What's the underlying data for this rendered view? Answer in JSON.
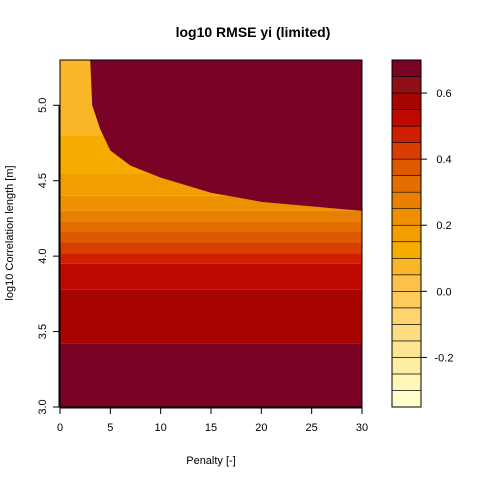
{
  "chart_data": {
    "type": "heatmap",
    "title": "log10 RMSE yi (limited)",
    "xlabel": "Penalty [-]",
    "ylabel": "log10 Correlation length [m]",
    "xlim": [
      0,
      30
    ],
    "ylim": [
      3.0,
      5.3
    ],
    "x_ticks": [
      "0",
      "5",
      "10",
      "15",
      "20",
      "25",
      "30"
    ],
    "y_ticks": [
      "3.0",
      "3.5",
      "4.0",
      "4.5",
      "5.0"
    ],
    "colorbar": {
      "range": [
        -0.35,
        0.7
      ],
      "ticks": [
        "-0.2",
        "0.0",
        "0.2",
        "0.4",
        "0.6"
      ],
      "levels": [
        {
          "from": -0.35,
          "to": -0.3,
          "color": "#FFFFCC"
        },
        {
          "from": -0.3,
          "to": -0.25,
          "color": "#FFF6B8"
        },
        {
          "from": -0.25,
          "to": -0.2,
          "color": "#FEEEA5"
        },
        {
          "from": -0.2,
          "to": -0.15,
          "color": "#FEE592"
        },
        {
          "from": -0.15,
          "to": -0.1,
          "color": "#FEDC80"
        },
        {
          "from": -0.1,
          "to": -0.05,
          "color": "#FDD46E"
        },
        {
          "from": -0.05,
          "to": 0.0,
          "color": "#FCCB5C"
        },
        {
          "from": 0.0,
          "to": 0.05,
          "color": "#FBC148"
        },
        {
          "from": 0.05,
          "to": 0.1,
          "color": "#F9B728"
        },
        {
          "from": 0.1,
          "to": 0.15,
          "color": "#F5AB00"
        },
        {
          "from": 0.15,
          "to": 0.2,
          "color": "#F29D00"
        },
        {
          "from": 0.2,
          "to": 0.25,
          "color": "#EE8F00"
        },
        {
          "from": 0.25,
          "to": 0.3,
          "color": "#E97F00"
        },
        {
          "from": 0.3,
          "to": 0.35,
          "color": "#E46D00"
        },
        {
          "from": 0.35,
          "to": 0.4,
          "color": "#DE5800"
        },
        {
          "from": 0.4,
          "to": 0.45,
          "color": "#D73E00"
        },
        {
          "from": 0.45,
          "to": 0.5,
          "color": "#CF1F00"
        },
        {
          "from": 0.5,
          "to": 0.55,
          "color": "#BF0900"
        },
        {
          "from": 0.55,
          "to": 0.6,
          "color": "#A80500"
        },
        {
          "from": 0.6,
          "to": 0.65,
          "color": "#900F14"
        },
        {
          "from": 0.65,
          "to": 0.7,
          "color": "#7A0225"
        }
      ]
    },
    "saturated_region": {
      "description_level": 0.7,
      "boundary": [
        [
          3.0,
          5.3
        ],
        [
          3.2,
          5.0
        ],
        [
          4.0,
          4.84
        ],
        [
          5.0,
          4.7
        ],
        [
          7.0,
          4.6
        ],
        [
          10.0,
          4.52
        ],
        [
          15.0,
          4.42
        ],
        [
          20.0,
          4.36
        ],
        [
          25.0,
          4.33
        ],
        [
          30.0,
          4.3
        ]
      ]
    },
    "bands": [
      {
        "y_from": 3.0,
        "y_to": 3.42,
        "value": 0.68
      },
      {
        "y_from": 3.42,
        "y_to": 3.78,
        "value": 0.58
      },
      {
        "y_from": 3.78,
        "y_to": 3.95,
        "value": 0.52
      },
      {
        "y_from": 3.95,
        "y_to": 4.02,
        "value": 0.47
      },
      {
        "y_from": 4.02,
        "y_to": 4.09,
        "value": 0.42
      },
      {
        "y_from": 4.09,
        "y_to": 4.16,
        "value": 0.37
      },
      {
        "y_from": 4.16,
        "y_to": 4.23,
        "value": 0.32
      },
      {
        "y_from": 4.23,
        "y_to": 4.3,
        "value": 0.27
      },
      {
        "y_from": 4.3,
        "y_to": 4.4,
        "value": 0.22
      },
      {
        "y_from": 4.4,
        "y_to": 4.55,
        "value": 0.17
      },
      {
        "y_from": 4.55,
        "y_to": 4.8,
        "value": 0.12
      },
      {
        "y_from": 4.8,
        "y_to": 5.3,
        "value": 0.07
      }
    ]
  }
}
